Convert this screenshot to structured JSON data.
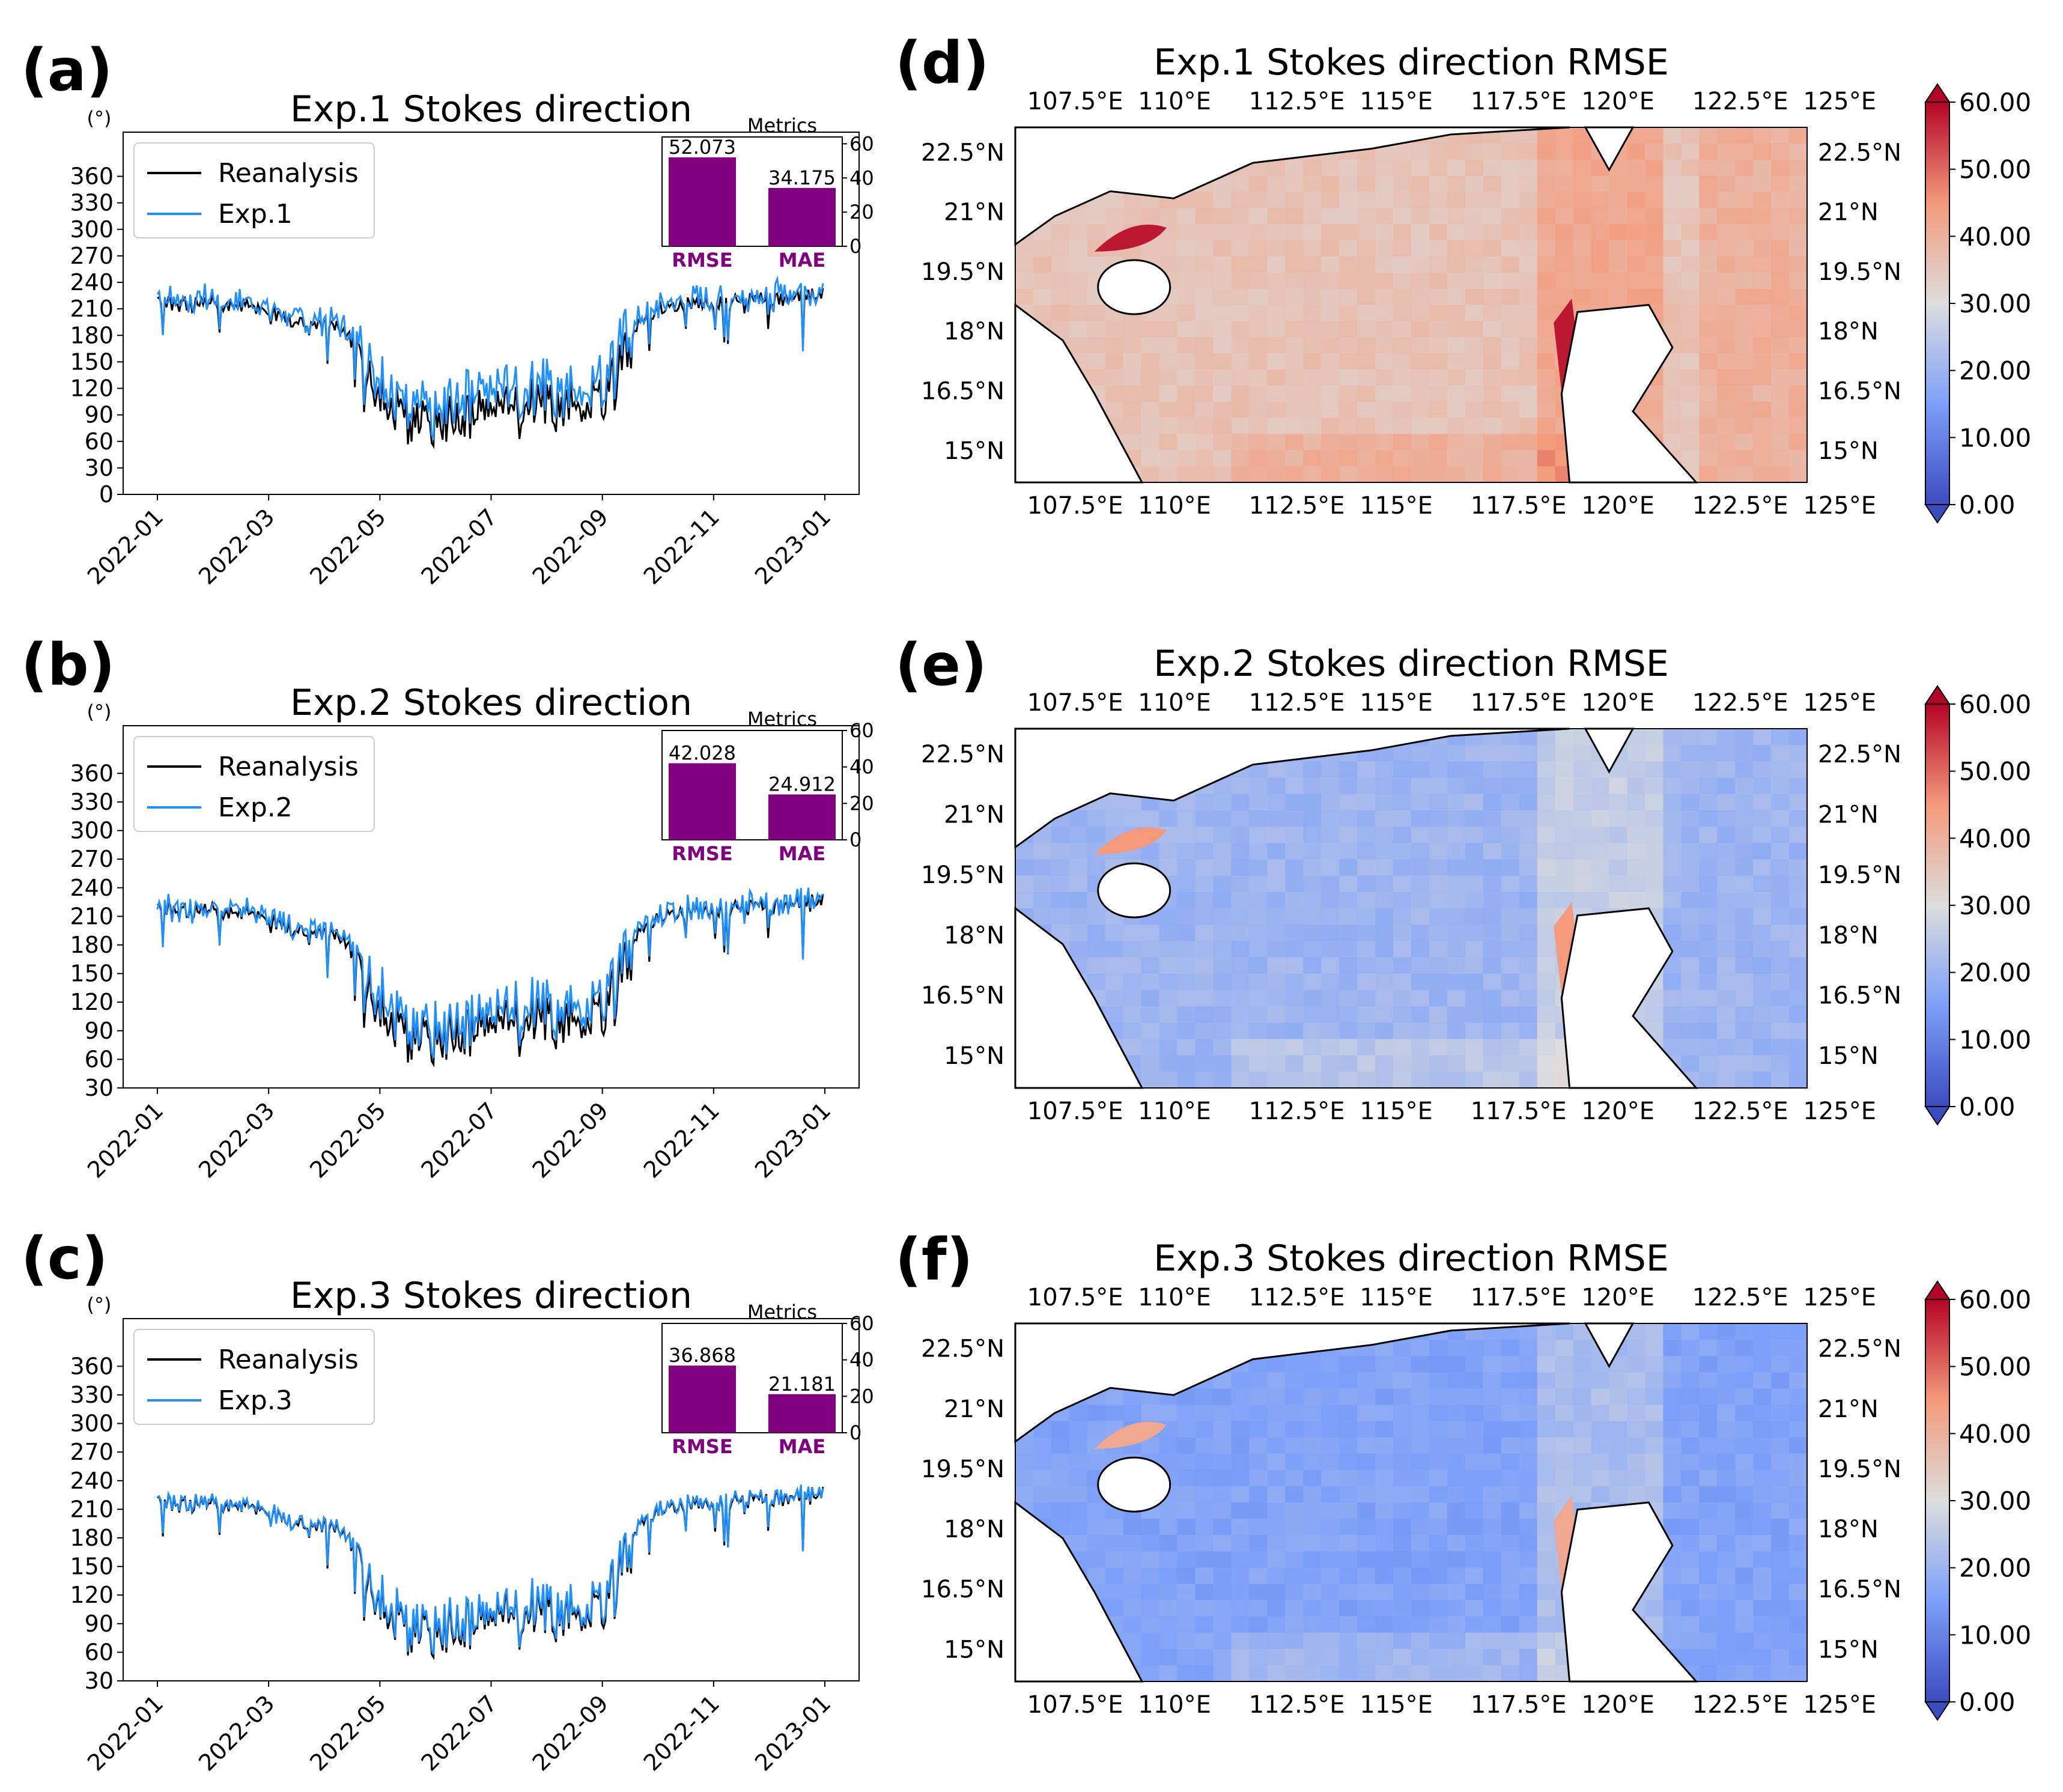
{
  "colors": {
    "reanalysis": "#000000",
    "exp": "#1e90ff",
    "bar": "#800080",
    "land": "#ffffff"
  },
  "chart_data": [
    {
      "type": "line",
      "panel": "(a)",
      "title": "Exp.1 Stokes direction",
      "ylabel": "(°)",
      "yticks": [
        0,
        30,
        60,
        90,
        120,
        150,
        180,
        210,
        240,
        270,
        300,
        330,
        360
      ],
      "ylim": [
        0,
        410
      ],
      "xticks": [
        "2022-01",
        "2022-03",
        "2022-05",
        "2022-07",
        "2022-09",
        "2022-11",
        "2023-01"
      ],
      "legend": [
        "Reanalysis",
        "Exp.1"
      ],
      "offset": 12,
      "inset": {
        "title": "Metrics",
        "categories": [
          "RMSE",
          "MAE"
        ],
        "values": [
          52.073,
          34.175
        ],
        "labels": [
          "52.073",
          "34.175"
        ],
        "yticks": [
          0,
          20,
          40,
          60
        ],
        "ylim": [
          0,
          64
        ]
      }
    },
    {
      "type": "line",
      "panel": "(b)",
      "title": "Exp.2 Stokes direction",
      "ylabel": "(°)",
      "yticks": [
        30,
        60,
        90,
        120,
        150,
        180,
        210,
        240,
        270,
        300,
        330,
        360
      ],
      "ylim": [
        30,
        410
      ],
      "xticks": [
        "2022-01",
        "2022-03",
        "2022-05",
        "2022-07",
        "2022-09",
        "2022-11",
        "2023-01"
      ],
      "legend": [
        "Reanalysis",
        "Exp.2"
      ],
      "offset": 8,
      "inset": {
        "title": "Metrics",
        "categories": [
          "RMSE",
          "MAE"
        ],
        "values": [
          42.028,
          24.912
        ],
        "labels": [
          "42.028",
          "24.912"
        ],
        "yticks": [
          0,
          20,
          40,
          60
        ],
        "ylim": [
          0,
          60
        ]
      }
    },
    {
      "type": "line",
      "panel": "(c)",
      "title": "Exp.3 Stokes direction",
      "ylabel": "(°)",
      "yticks": [
        30,
        60,
        90,
        120,
        150,
        180,
        210,
        240,
        270,
        300,
        330,
        360
      ],
      "ylim": [
        30,
        410
      ],
      "xticks": [
        "2022-01",
        "2022-03",
        "2022-05",
        "2022-07",
        "2022-09",
        "2022-11",
        "2023-01"
      ],
      "legend": [
        "Reanalysis",
        "Exp.3"
      ],
      "offset": 3,
      "inset": {
        "title": "Metrics",
        "categories": [
          "RMSE",
          "MAE"
        ],
        "values": [
          36.868,
          21.181
        ],
        "labels": [
          "36.868",
          "21.181"
        ],
        "yticks": [
          0,
          20,
          40,
          60
        ],
        "ylim": [
          0,
          60
        ]
      }
    },
    {
      "type": "heatmap",
      "panel": "(d)",
      "title": "Exp.1 Stokes direction RMSE",
      "lon_ticks": [
        "107.5°E",
        "110°E",
        "112.5°E",
        "115°E",
        "117.5°E",
        "120°E",
        "122.5°E",
        "125°E"
      ],
      "lat_ticks": [
        "22.5°N",
        "21°N",
        "19.5°N",
        "18°N",
        "16.5°N",
        "15°N"
      ],
      "colorbar_ticks": [
        "60.00",
        "50.00",
        "40.00",
        "30.00",
        "20.00",
        "10.00",
        "0.00"
      ],
      "colorbar_range": [
        0,
        60
      ],
      "mean_level": 36
    },
    {
      "type": "heatmap",
      "panel": "(e)",
      "title": "Exp.2 Stokes direction RMSE",
      "lon_ticks": [
        "107.5°E",
        "110°E",
        "112.5°E",
        "115°E",
        "117.5°E",
        "120°E",
        "122.5°E",
        "125°E"
      ],
      "lat_ticks": [
        "22.5°N",
        "21°N",
        "19.5°N",
        "18°N",
        "16.5°N",
        "15°N"
      ],
      "colorbar_ticks": [
        "60.00",
        "50.00",
        "40.00",
        "30.00",
        "20.00",
        "10.00",
        "0.00"
      ],
      "colorbar_range": [
        0,
        60
      ],
      "mean_level": 20
    },
    {
      "type": "heatmap",
      "panel": "(f)",
      "title": "Exp.3 Stokes direction RMSE",
      "lon_ticks": [
        "107.5°E",
        "110°E",
        "112.5°E",
        "115°E",
        "117.5°E",
        "120°E",
        "122.5°E",
        "125°E"
      ],
      "lat_ticks": [
        "22.5°N",
        "21°N",
        "19.5°N",
        "18°N",
        "16.5°N",
        "15°N"
      ],
      "colorbar_ticks": [
        "60.00",
        "50.00",
        "40.00",
        "30.00",
        "20.00",
        "10.00",
        "0.00"
      ],
      "colorbar_range": [
        0,
        60
      ],
      "mean_level": 16
    }
  ]
}
